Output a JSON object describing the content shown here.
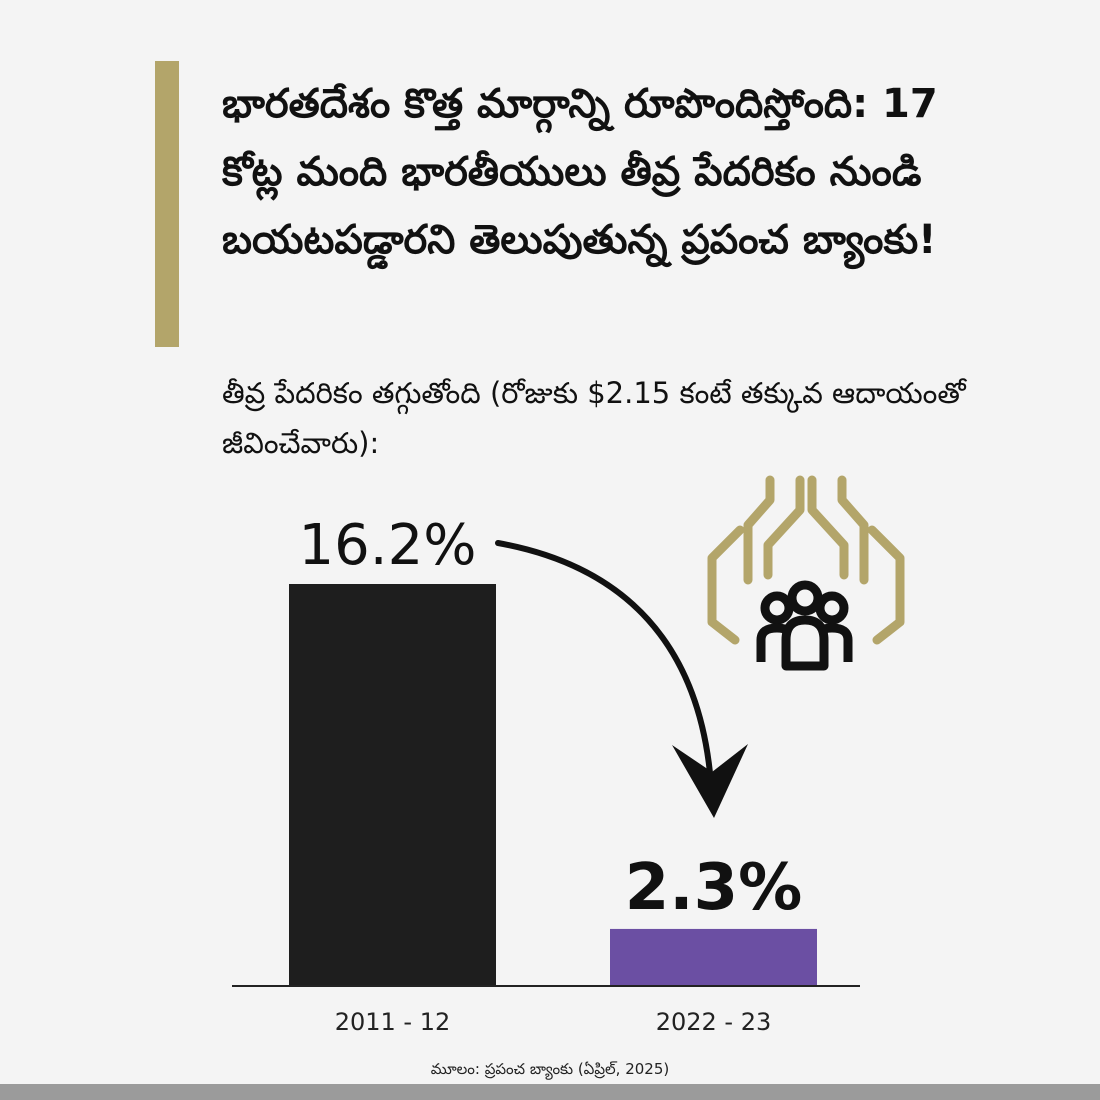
{
  "headline": "భారతదేశం కొత్త మార్గాన్ని రూపొందిస్తోంది: 17 కోట్ల మంది భారతీయులు తీవ్ర పేదరికం నుండి బయటపడ్డారని తెలుపుతున్న ప్రపంచ బ్యాంకు!",
  "subtitle": "తీవ్ర పేదరికం తగ్గుతోంది (రోజుకు $2.15 కంటే తక్కువ ఆదాయంతో జీవించేవారు):",
  "source": "మూలం: ప్రపంచ బ్యాంకు (ఏప్రిల్, 2025)",
  "colors": {
    "accent": "#b3a56a",
    "bar_2011": "#1e1e1e",
    "bar_2022": "#6b4fa3",
    "icon_hands": "#b3a56a",
    "icon_people": "#111111"
  },
  "icons": [
    "hands-protecting-people-icon",
    "down-arrow-icon"
  ],
  "chart_data": {
    "type": "bar",
    "categories": [
      "2011 - 12",
      "2022 - 23"
    ],
    "values": [
      16.2,
      2.3
    ],
    "data_labels": [
      "16.2%",
      "2.3%"
    ],
    "unit": "%",
    "ylim": [
      0,
      16.2
    ],
    "grid": false,
    "legend": "none",
    "xlabel": "",
    "ylabel": ""
  }
}
